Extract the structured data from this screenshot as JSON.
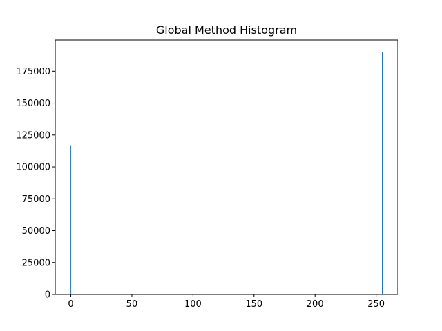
{
  "chart_data": {
    "type": "bar",
    "title": "Global Method Histogram",
    "xlabel": "",
    "ylabel": "",
    "xlim": [
      -12.75,
      267.75
    ],
    "ylim": [
      0,
      199500
    ],
    "x": [
      0,
      255
    ],
    "values": [
      117000,
      190000
    ],
    "bar_width": 0.5,
    "xticks": [
      0,
      50,
      100,
      150,
      200,
      250
    ],
    "yticks": [
      0,
      25000,
      50000,
      75000,
      100000,
      125000,
      150000,
      175000
    ],
    "grid": false,
    "legend": "none",
    "colors": {
      "bar": "#1f77b4",
      "axes": "#000000",
      "background": "#ffffff"
    }
  }
}
